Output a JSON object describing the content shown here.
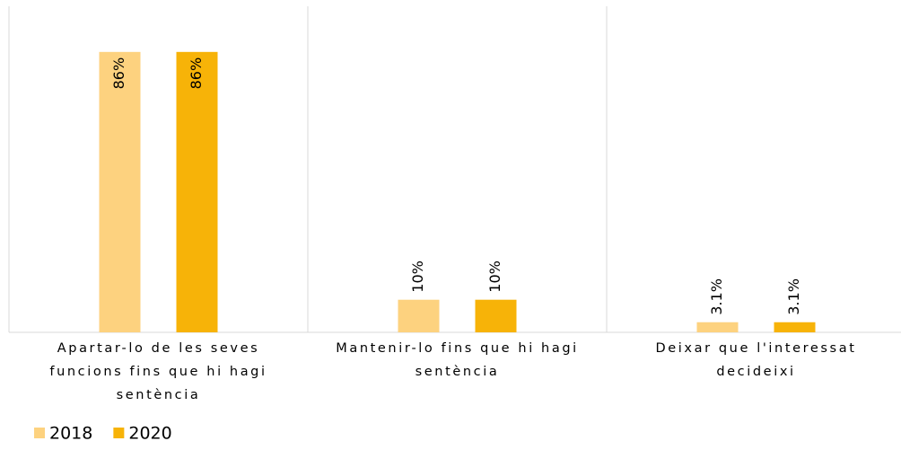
{
  "chart_data": {
    "type": "bar",
    "categories": [
      "Apartar-lo de les seves funcions fins que hi hagi sentència",
      "Mantenir-lo fins que hi hagi sentència",
      "Deixar que l'interessat decideixi"
    ],
    "series": [
      {
        "name": "2018",
        "color": "#fdd27f",
        "values": [
          86,
          10,
          3.1
        ],
        "value_labels": [
          "86%",
          "10%",
          "3.1%"
        ]
      },
      {
        "name": "2020",
        "color": "#f7b308",
        "values": [
          86,
          10,
          3.1
        ],
        "value_labels": [
          "86%",
          "10%",
          "3.1%"
        ]
      }
    ],
    "ylim": [
      0,
      100
    ],
    "legend": "bottom-left"
  }
}
